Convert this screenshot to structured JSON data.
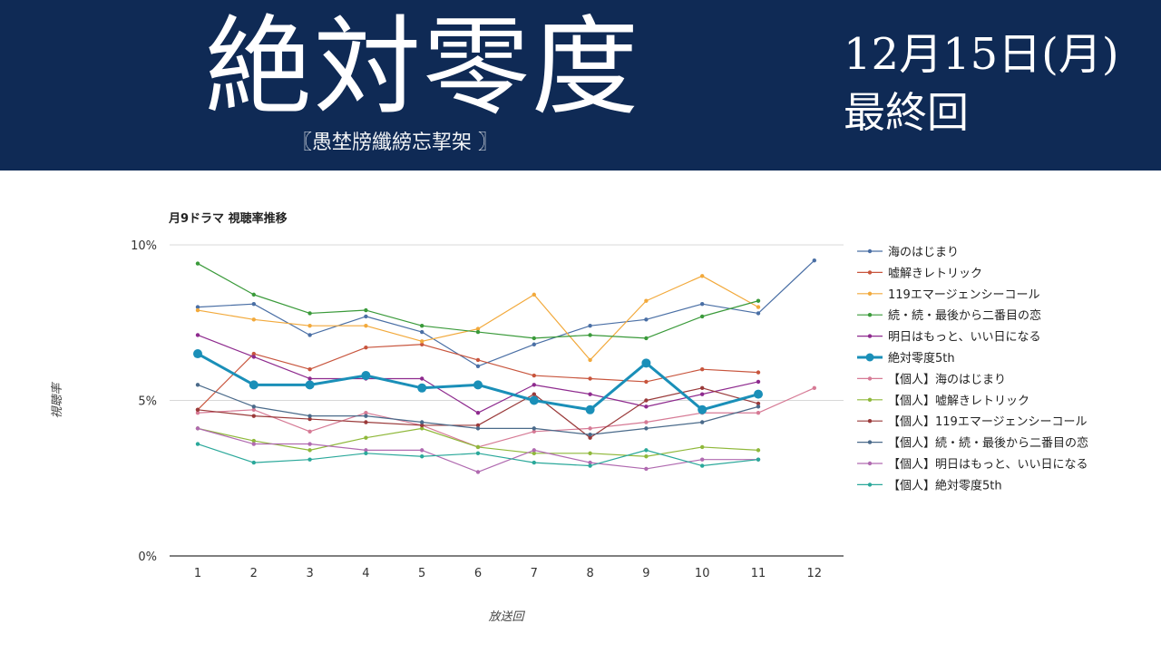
{
  "header": {
    "title": "絶対零度",
    "subtitle": "〖愚埜牓纖縍忘挈架 〗",
    "date": "12月15日(月)",
    "episode_label": "最終回"
  },
  "chart_data": {
    "type": "line",
    "title": "月9ドラマ 視聴率推移",
    "xlabel": "放送回",
    "ylabel": "視聴率",
    "ylim": [
      0,
      10
    ],
    "yticks": [
      {
        "value": 0,
        "label": "0%"
      },
      {
        "value": 5,
        "label": "5%"
      },
      {
        "value": 10,
        "label": "10%"
      }
    ],
    "categories": [
      "1",
      "2",
      "3",
      "4",
      "5",
      "6",
      "7",
      "8",
      "9",
      "10",
      "11",
      "12"
    ],
    "legend_position": "right",
    "series": [
      {
        "name": "海のはじまり",
        "color": "#4a6fa5",
        "bold": false,
        "values": [
          8.0,
          8.1,
          7.1,
          7.7,
          7.2,
          6.1,
          6.8,
          7.4,
          7.6,
          8.1,
          7.8,
          9.5
        ]
      },
      {
        "name": "嘘解きレトリック",
        "color": "#c8553d",
        "bold": false,
        "values": [
          4.7,
          6.5,
          6.0,
          6.7,
          6.8,
          6.3,
          5.8,
          5.7,
          5.6,
          6.0,
          5.9,
          null
        ]
      },
      {
        "name": "119エマージェンシーコール",
        "color": "#f2a93b",
        "bold": false,
        "values": [
          7.9,
          7.6,
          7.4,
          7.4,
          6.9,
          7.3,
          8.4,
          6.3,
          8.2,
          9.0,
          8.0,
          null
        ]
      },
      {
        "name": "続・続・最後から二番目の恋",
        "color": "#3a9a3a",
        "bold": false,
        "values": [
          9.4,
          8.4,
          7.8,
          7.9,
          7.4,
          7.2,
          7.0,
          7.1,
          7.0,
          7.7,
          8.2,
          null
        ]
      },
      {
        "name": "明日はもっと、いい日になる",
        "color": "#8e2a8e",
        "bold": false,
        "values": [
          7.1,
          6.4,
          5.7,
          5.7,
          5.7,
          4.6,
          5.5,
          5.2,
          4.8,
          5.2,
          5.6,
          null
        ]
      },
      {
        "name": "絶対零度5th",
        "color": "#1a8fb8",
        "bold": true,
        "values": [
          6.5,
          5.5,
          5.5,
          5.8,
          5.4,
          5.5,
          5.0,
          4.7,
          6.2,
          4.7,
          5.2,
          null
        ]
      },
      {
        "name": "【個人】海のはじまり",
        "color": "#d67a95",
        "bold": false,
        "values": [
          4.6,
          4.7,
          4.0,
          4.6,
          4.2,
          3.5,
          4.0,
          4.1,
          4.3,
          4.6,
          4.6,
          5.4
        ]
      },
      {
        "name": "【個人】嘘解きレトリック",
        "color": "#8fb83a",
        "bold": false,
        "values": [
          4.1,
          3.7,
          3.4,
          3.8,
          4.1,
          3.5,
          3.3,
          3.3,
          3.2,
          3.5,
          3.4,
          null
        ]
      },
      {
        "name": "【個人】119エマージェンシーコール",
        "color": "#9a3a3a",
        "bold": false,
        "values": [
          4.7,
          4.5,
          4.4,
          4.3,
          4.2,
          4.2,
          5.2,
          3.8,
          5.0,
          5.4,
          4.9,
          null
        ]
      },
      {
        "name": "【個人】続・続・最後から二番目の恋",
        "color": "#4a6a8a",
        "bold": false,
        "values": [
          5.5,
          4.8,
          4.5,
          4.5,
          4.3,
          4.1,
          4.1,
          3.9,
          4.1,
          4.3,
          4.8,
          null
        ]
      },
      {
        "name": "【個人】明日はもっと、いい日になる",
        "color": "#b06ab0",
        "bold": false,
        "values": [
          4.1,
          3.6,
          3.6,
          3.4,
          3.4,
          2.7,
          3.4,
          3.0,
          2.8,
          3.1,
          3.1,
          null
        ]
      },
      {
        "name": "【個人】絶対零度5th",
        "color": "#2aa89a",
        "bold": false,
        "values": [
          3.6,
          3.0,
          3.1,
          3.3,
          3.2,
          3.3,
          3.0,
          2.9,
          3.4,
          2.9,
          3.1,
          null
        ]
      }
    ]
  }
}
